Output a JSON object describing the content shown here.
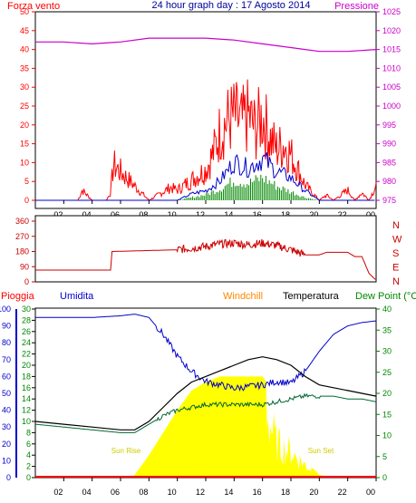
{
  "header": {
    "left_label": "Forza vento",
    "title": "24 hour graph day : 17 Agosto 2014",
    "right_label": "Pressione"
  },
  "bottom_header": {
    "rain": "Pioggia",
    "humidity": "Umidita",
    "windchill": "Windchill",
    "temperature": "Temperatura",
    "dewpoint": "Dew Point (°C"
  },
  "annotations": {
    "sunrise": "Sun Rise",
    "sunset": "Sun Set"
  },
  "colors": {
    "wind": "#ff0000",
    "wind_avg": "#0000cc",
    "wind_green": "#008800",
    "pressure": "#cc00cc",
    "direction": "#cc0000",
    "humidity": "#0000cc",
    "temperature": "#000000",
    "dewpoint": "#006633",
    "solar": "#ffff00",
    "rain": "#ff0000",
    "axis_left": "#ff0000",
    "axis_right": "#cc00cc",
    "axis_hum": "#0000cc",
    "axis_temp": "#008800"
  },
  "chart_data": [
    {
      "type": "line",
      "name": "wind-pressure",
      "x_ticks": [
        "02",
        "04",
        "06",
        "08",
        "10",
        "12",
        "14",
        "16",
        "18",
        "20",
        "22",
        "00"
      ],
      "y_left_ticks": [
        "0",
        "5",
        "10",
        "15",
        "20",
        "25",
        "30",
        "35",
        "40",
        "45",
        "50"
      ],
      "y_left_lim": [
        0,
        50
      ],
      "y_right_ticks": [
        "975",
        "980",
        "985",
        "990",
        "995",
        "1000",
        "1005",
        "1010",
        "1015",
        "1020",
        "1025"
      ],
      "y_right_lim": [
        975,
        1025
      ],
      "series": [
        {
          "key": "pressure",
          "color": "#cc00cc",
          "x": [
            0,
            2,
            4,
            6,
            8,
            10,
            12,
            14,
            16,
            18,
            19,
            20,
            22,
            24
          ],
          "y": [
            1017,
            1017,
            1016.5,
            1017,
            1018,
            1018,
            1018,
            1017.5,
            1016.5,
            1015.5,
            1015,
            1014.5,
            1014.5,
            1015
          ]
        },
        {
          "key": "wind_gust",
          "color": "#ff0000",
          "x": [
            0,
            2,
            3,
            3.3,
            4,
            5,
            5.3,
            5.5,
            8,
            9.5,
            10,
            11,
            12,
            12.5,
            13,
            13.5,
            14,
            14.5,
            15,
            15.5,
            16,
            16.5,
            17,
            17.5,
            18,
            18.5,
            19,
            19.5,
            20,
            20.5,
            21,
            22,
            22.5,
            23,
            23.5,
            24
          ],
          "y": [
            0,
            0,
            0,
            4,
            0,
            0,
            3,
            14,
            0,
            5,
            4,
            8,
            12,
            18,
            27,
            31,
            33,
            30,
            33,
            28,
            33,
            25,
            20,
            22,
            18,
            12,
            6,
            3,
            0,
            2,
            0,
            4,
            0,
            3,
            0,
            6
          ]
        },
        {
          "key": "wind_avg",
          "color": "#0000cc",
          "x": [
            0,
            10,
            11,
            12,
            13,
            14,
            15,
            16,
            17,
            18,
            19,
            20,
            24
          ],
          "y": [
            0,
            0,
            2,
            3,
            6,
            12,
            10,
            13,
            9,
            7,
            3,
            0,
            0
          ]
        },
        {
          "key": "wind_green",
          "color": "#008800",
          "x": [
            0,
            10,
            11,
            12,
            13,
            14,
            15,
            16,
            17,
            18,
            19,
            20,
            24
          ],
          "y": [
            0,
            0,
            1,
            2,
            4,
            7,
            6,
            8,
            5,
            3,
            1,
            0,
            0
          ]
        }
      ]
    },
    {
      "type": "line",
      "name": "wind-direction",
      "y_ticks": [
        "360",
        "270",
        "180",
        "90",
        "0"
      ],
      "y_lim": [
        0,
        360
      ],
      "y_right_labels": [
        "N",
        "W",
        "S",
        "E",
        "N"
      ],
      "series": [
        {
          "key": "direction",
          "color": "#cc0000",
          "x": [
            0,
            5.3,
            5.4,
            10,
            11,
            12,
            13,
            14,
            15,
            16,
            17,
            18,
            19,
            20,
            20.5,
            21,
            22,
            22.5,
            23,
            23.5,
            24
          ],
          "y": [
            70,
            70,
            180,
            190,
            200,
            210,
            225,
            230,
            220,
            230,
            215,
            190,
            160,
            160,
            175,
            175,
            175,
            150,
            150,
            50,
            10
          ]
        }
      ]
    },
    {
      "type": "area",
      "name": "humidity-temperature",
      "x_ticks": [
        "02",
        "04",
        "06",
        "08",
        "10",
        "12",
        "14",
        "16",
        "18",
        "20",
        "22",
        "00"
      ],
      "y_hum_ticks": [
        "0",
        "10",
        "20",
        "30",
        "40",
        "50",
        "60",
        "70",
        "80",
        "90",
        "100"
      ],
      "y_hum_lim": [
        0,
        100
      ],
      "y_temp_ticks": [
        "0",
        "2",
        "4",
        "6",
        "8",
        "10",
        "12",
        "14",
        "16",
        "18",
        "20",
        "22",
        "24",
        "26",
        "28",
        "30"
      ],
      "y_temp_lim": [
        0,
        30
      ],
      "y_right_ticks": [
        "0",
        "5",
        "10",
        "15",
        "20",
        "25",
        "30",
        "35",
        "40"
      ],
      "y_right_lim": [
        0,
        40
      ],
      "series": [
        {
          "key": "humidity",
          "color": "#0000cc",
          "x": [
            0,
            2,
            4,
            6,
            7,
            8,
            9,
            10,
            11,
            12,
            13,
            14,
            15,
            16,
            17,
            18,
            19,
            20,
            21,
            22,
            23,
            24
          ],
          "y": [
            95,
            95,
            95,
            96,
            97,
            95,
            85,
            72,
            63,
            57,
            55,
            53,
            54,
            55,
            57,
            56,
            63,
            75,
            85,
            90,
            92,
            93
          ]
        },
        {
          "key": "temperature",
          "color": "#000000",
          "x": [
            0,
            2,
            4,
            6,
            7,
            8,
            9,
            10,
            11,
            12,
            13,
            14,
            15,
            16,
            17,
            18,
            19,
            20,
            21,
            22,
            23,
            24
          ],
          "y": [
            10,
            9.5,
            9,
            8.5,
            8.5,
            10,
            12.5,
            15,
            17,
            18,
            19,
            20,
            21,
            21.5,
            21,
            20,
            18,
            16.5,
            16,
            15.5,
            15,
            14.5
          ]
        },
        {
          "key": "dewpoint",
          "color": "#006633",
          "x": [
            0,
            2,
            4,
            6,
            7,
            8,
            9,
            10,
            11,
            12,
            13,
            14,
            15,
            16,
            17,
            18,
            19,
            20,
            21,
            22,
            23,
            24
          ],
          "y": [
            9.5,
            9,
            8.5,
            8,
            8,
            9.5,
            11,
            12,
            12.5,
            13,
            13,
            13,
            13,
            13,
            13.5,
            14,
            14.5,
            14.5,
            14.5,
            14,
            14,
            13.5
          ]
        },
        {
          "key": "solar",
          "color": "#ffff00",
          "x": [
            0,
            6.8,
            7,
            8,
            9,
            10,
            11,
            12,
            13,
            14,
            15,
            16,
            16.3,
            16.5,
            17,
            18,
            19,
            20,
            21,
            24
          ],
          "y": [
            0,
            0,
            0.5,
            4,
            8,
            12,
            15.5,
            17,
            18,
            18,
            18,
            18,
            17,
            13,
            8,
            6,
            3,
            0.5,
            0,
            0
          ]
        },
        {
          "key": "rain",
          "color": "#ff0000",
          "x": [
            0,
            24
          ],
          "y": [
            0,
            0
          ]
        }
      ]
    }
  ]
}
